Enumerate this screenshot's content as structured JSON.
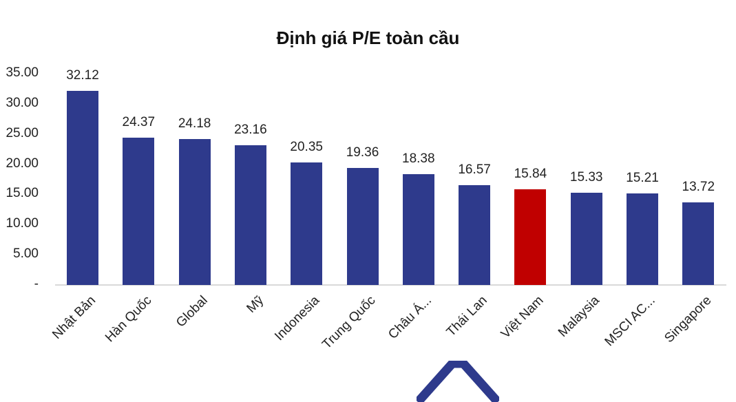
{
  "chart_data": {
    "type": "bar",
    "title": "Định giá P/E toàn cầu",
    "xlabel": "",
    "ylabel": "",
    "ylim": [
      0,
      35
    ],
    "yticks": [
      "-",
      "5.00",
      "10.00",
      "15.00",
      "20.00",
      "25.00",
      "30.00",
      "35.00"
    ],
    "grid": false,
    "legend": null,
    "categories": [
      "Nhật Bản",
      "Hàn Quốc",
      "Global",
      "Mỹ",
      "Indonesia",
      "Trung Quốc",
      "Châu Á...",
      "Thái Lan",
      "Việt Nam",
      "Malaysia",
      "MSCI AC...",
      "Singapore"
    ],
    "values": [
      32.12,
      24.37,
      24.18,
      23.16,
      20.35,
      19.36,
      18.38,
      16.57,
      15.84,
      15.33,
      15.21,
      13.72
    ],
    "value_labels": [
      "32.12",
      "24.37",
      "24.18",
      "23.16",
      "20.35",
      "19.36",
      "18.38",
      "16.57",
      "15.84",
      "15.33",
      "15.21",
      "13.72"
    ],
    "colors": {
      "default": "#2E3A8C",
      "highlight": "#C00000",
      "highlight_category": "Việt Nam"
    }
  },
  "logo": {
    "icon": "chevron-up-logo-icon",
    "color": "#2E3A8C"
  }
}
